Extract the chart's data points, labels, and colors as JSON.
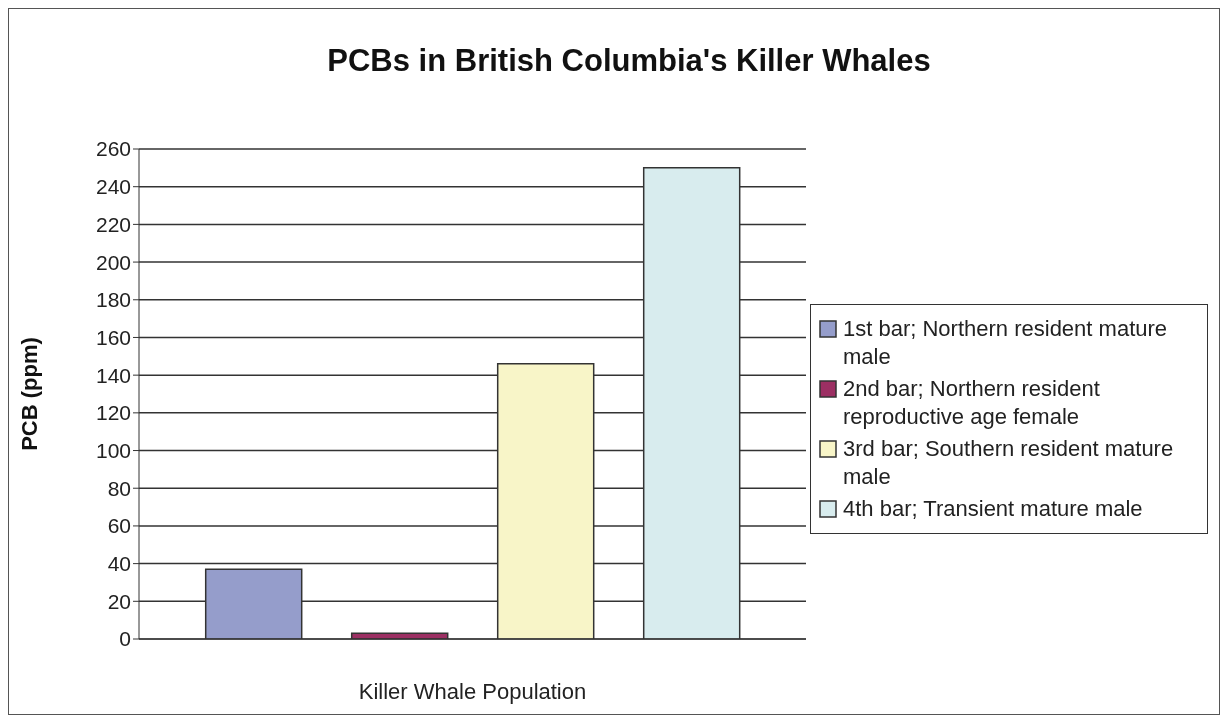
{
  "chart_data": {
    "type": "bar",
    "title": "PCBs in British Columbia's Killer Whales",
    "xlabel": "Killer Whale Population",
    "ylabel": "PCB (ppm)",
    "categories": [
      null
    ],
    "series": [
      {
        "name": "1st bar; Northern resident mature male",
        "color": "#959dcb",
        "values": [
          37
        ]
      },
      {
        "name": "2nd bar; Northern resident reproductive age female",
        "color": "#9c2f63",
        "values": [
          3
        ]
      },
      {
        "name": "3rd bar; Southern resident mature male",
        "color": "#f8f5c8",
        "values": [
          146
        ]
      },
      {
        "name": "4th bar; Transient mature male",
        "color": "#d8ecee",
        "values": [
          250
        ]
      }
    ],
    "ylim": [
      0,
      260
    ],
    "yticks": [
      0,
      20,
      40,
      60,
      80,
      100,
      120,
      140,
      160,
      180,
      200,
      220,
      240,
      260
    ],
    "grid": "y",
    "legend": "right"
  }
}
